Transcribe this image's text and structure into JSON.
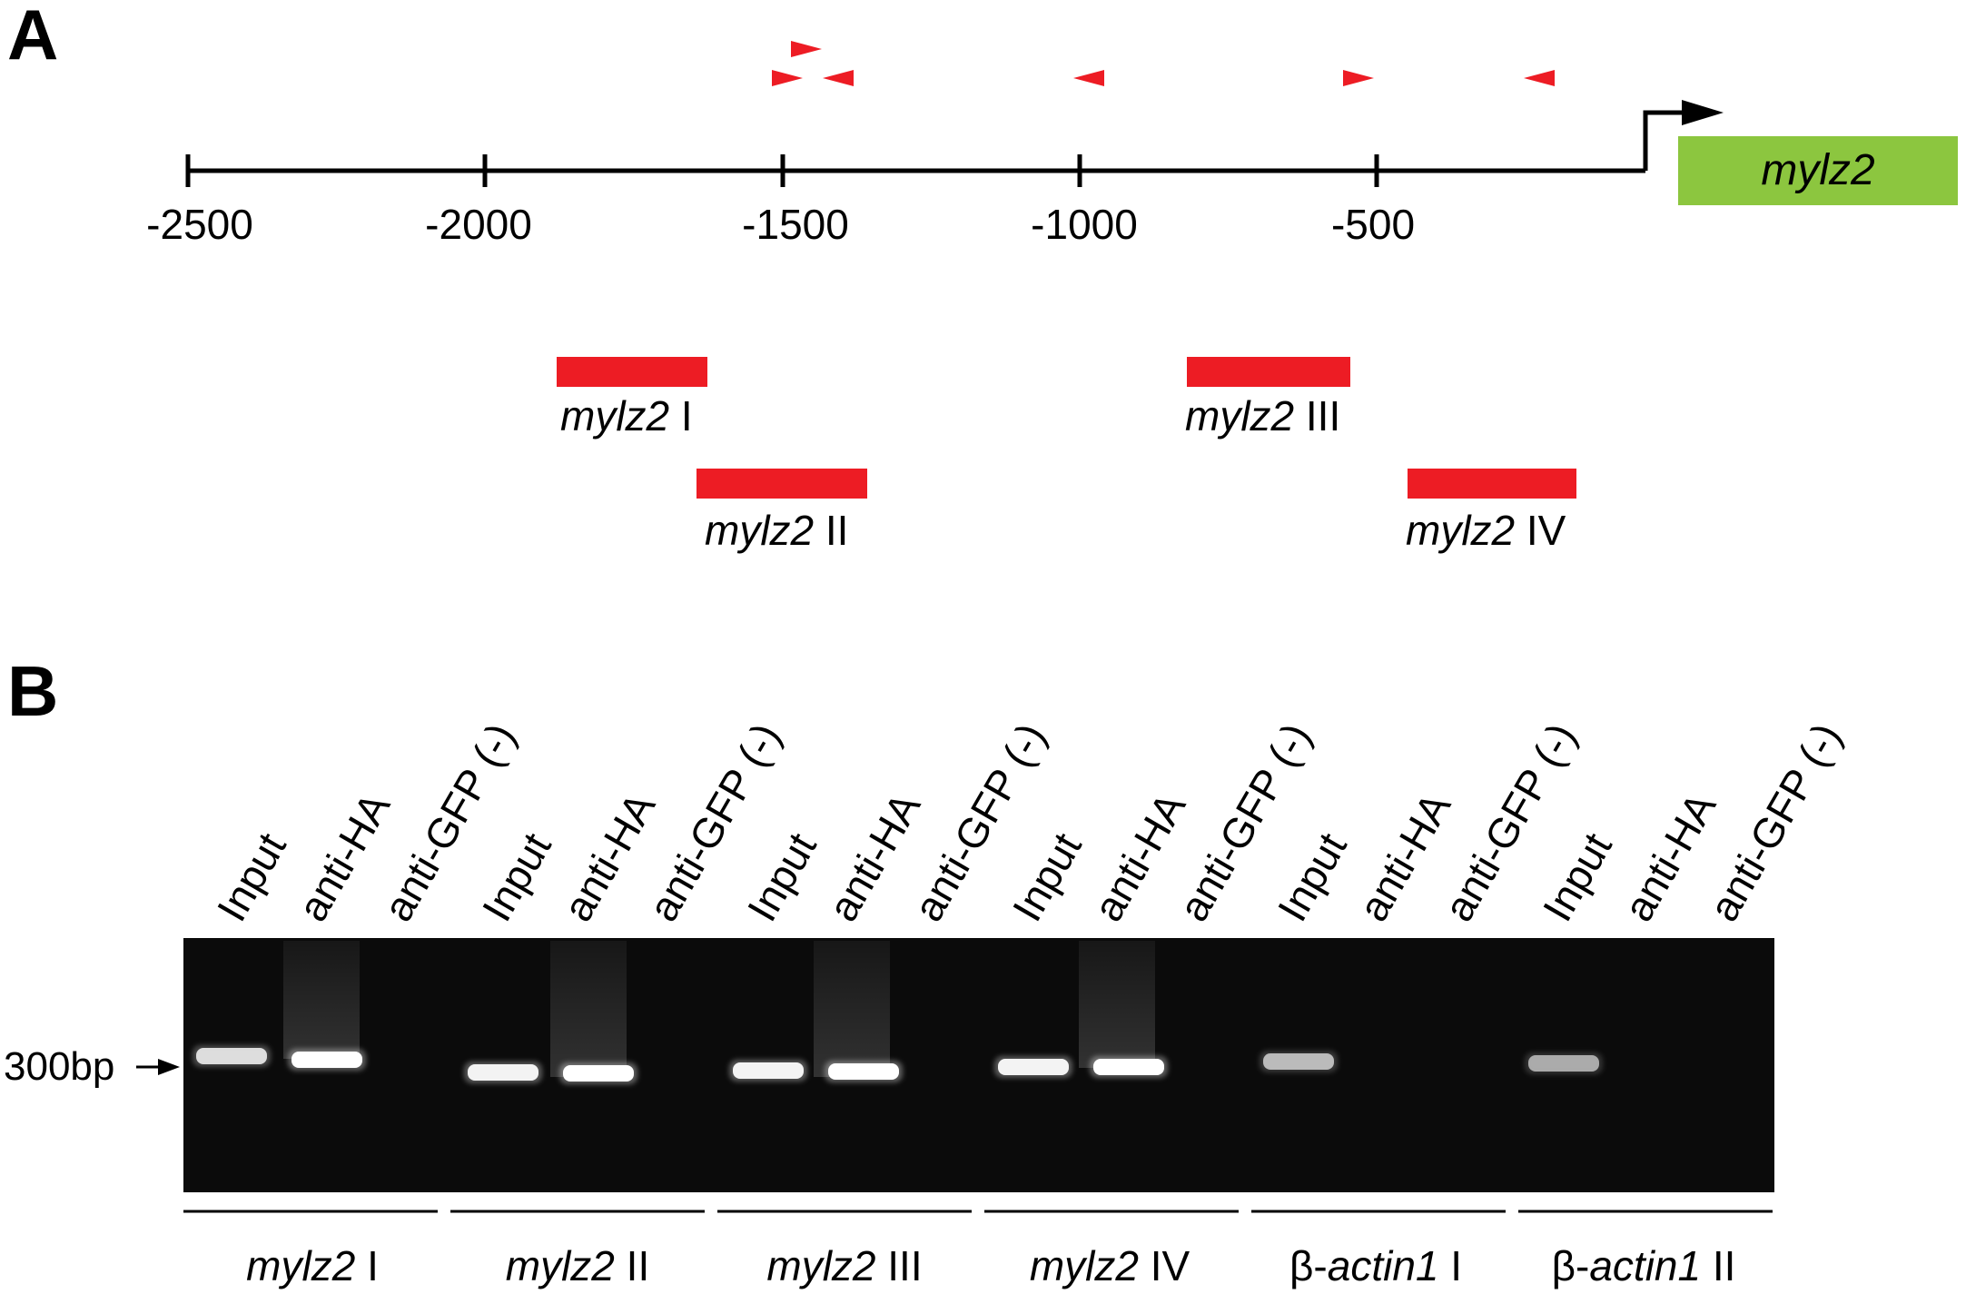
{
  "panel_a": {
    "letter": "A",
    "axis_ticks": [
      "-2500",
      "-2000",
      "-1500",
      "-1000",
      "-500"
    ],
    "gene_name": "mylz2",
    "colors": {
      "gene_box": "#8cc63f",
      "fragment": "#ed1c24",
      "primer": "#ed1c24",
      "axis": "#000000"
    },
    "fragments": [
      {
        "italic": "mylz2",
        "roman": "I"
      },
      {
        "italic": "mylz2",
        "roman": "II"
      },
      {
        "italic": "mylz2",
        "roman": "III"
      },
      {
        "italic": "mylz2",
        "roman": "IV"
      }
    ]
  },
  "panel_b": {
    "letter": "B",
    "marker": "300bp",
    "gel_color": "#0b0b0b",
    "lanes": [
      "Input",
      "anti-HA",
      "anti-GFP (-)",
      "Input",
      "anti-HA",
      "anti-GFP (-)",
      "Input",
      "anti-HA",
      "anti-GFP (-)",
      "Input",
      "anti-HA",
      "anti-GFP (-)",
      "Input",
      "anti-HA",
      "anti-GFP (-)",
      "Input",
      "anti-HA",
      "anti-GFP (-)"
    ],
    "band_intensity": [
      0.75,
      1.0,
      0,
      0.9,
      1.0,
      0,
      0.9,
      1.0,
      0,
      0.9,
      1.0,
      0,
      0.55,
      0,
      0,
      0.45,
      0,
      0
    ],
    "groups": [
      {
        "prefix": "",
        "italic": "mylz2",
        "roman": "I"
      },
      {
        "prefix": "",
        "italic": "mylz2",
        "roman": "II"
      },
      {
        "prefix": "",
        "italic": "mylz2",
        "roman": "III"
      },
      {
        "prefix": "",
        "italic": "mylz2",
        "roman": "IV"
      },
      {
        "prefix": "β-",
        "italic": "actin1",
        "roman": "I"
      },
      {
        "prefix": "β-",
        "italic": "actin1",
        "roman": "II"
      }
    ]
  }
}
